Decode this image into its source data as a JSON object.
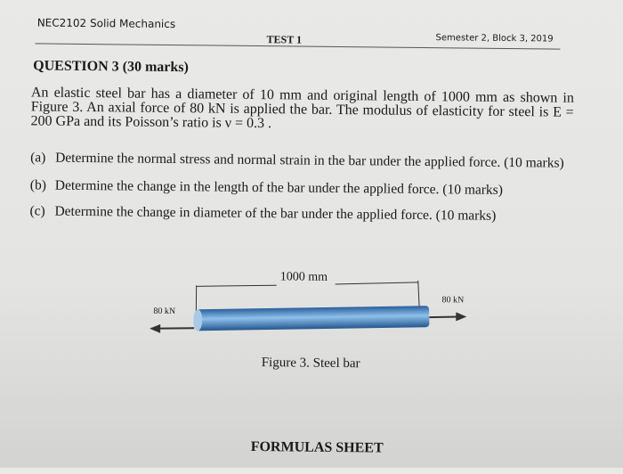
{
  "header": {
    "course": "NEC2102 Solid Mechanics",
    "test": "TEST 1",
    "semester": "Semester 2, Block 3, 2019"
  },
  "question": {
    "title": "QUESTION 3 (30 marks)",
    "text": "An elastic steel bar has a diameter of 10 mm and original length of 1000 mm as shown in Figure 3. An axial force of 80 kN is applied the bar. The modulus of elasticity for steel is E = 200 GPa and its Poisson’s ratio is ν = 0.3 .",
    "parts": [
      {
        "label": "(a)",
        "text": "Determine the normal stress and normal strain in the bar under the applied force. (10 marks)"
      },
      {
        "label": "(b)",
        "text": "Determine the change in the length of the bar under the applied force. (10 marks)"
      },
      {
        "label": "(c)",
        "text": "Determine the change in diameter of the bar under the applied force. (10 marks)"
      }
    ]
  },
  "figure": {
    "length_label": "1000 mm",
    "left_force": "80 kN",
    "right_force": "80 kN",
    "caption": "Figure 3. Steel bar",
    "bar_color": "#3d7fc4"
  },
  "footer": {
    "title": "FORMULAS SHEET"
  }
}
